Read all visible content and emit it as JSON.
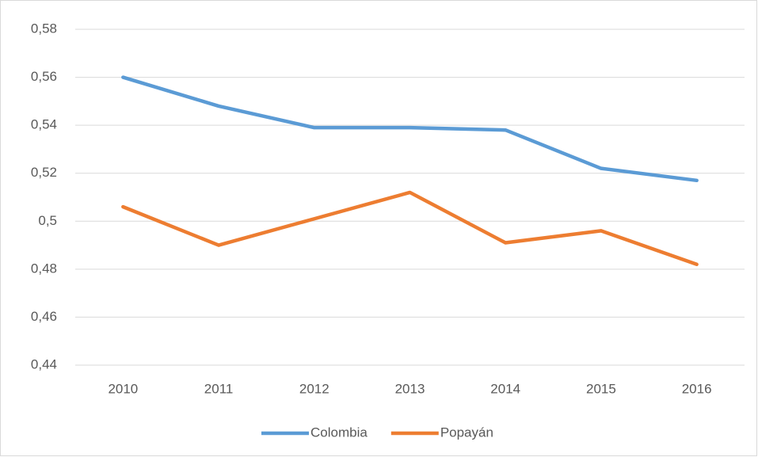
{
  "chart_data": {
    "type": "line",
    "categories": [
      "2010",
      "2011",
      "2012",
      "2013",
      "2014",
      "2015",
      "2016"
    ],
    "series": [
      {
        "name": "Colombia",
        "color": "#5b9bd5",
        "values": [
          0.56,
          0.548,
          0.539,
          0.539,
          0.538,
          0.522,
          0.517
        ]
      },
      {
        "name": "Popayán",
        "color": "#ed7d31",
        "values": [
          0.506,
          0.49,
          0.501,
          0.512,
          0.491,
          0.496,
          0.482
        ]
      }
    ],
    "ylim": [
      0.44,
      0.58
    ],
    "yticks": [
      {
        "value": 0.44,
        "label": "0,44"
      },
      {
        "value": 0.46,
        "label": "0,46"
      },
      {
        "value": 0.48,
        "label": "0,48"
      },
      {
        "value": 0.5,
        "label": "0,5"
      },
      {
        "value": 0.52,
        "label": "0,52"
      },
      {
        "value": 0.54,
        "label": "0,54"
      },
      {
        "value": 0.56,
        "label": "0,56"
      },
      {
        "value": 0.58,
        "label": "0,58"
      }
    ],
    "grid": true,
    "legend": "bottom"
  }
}
